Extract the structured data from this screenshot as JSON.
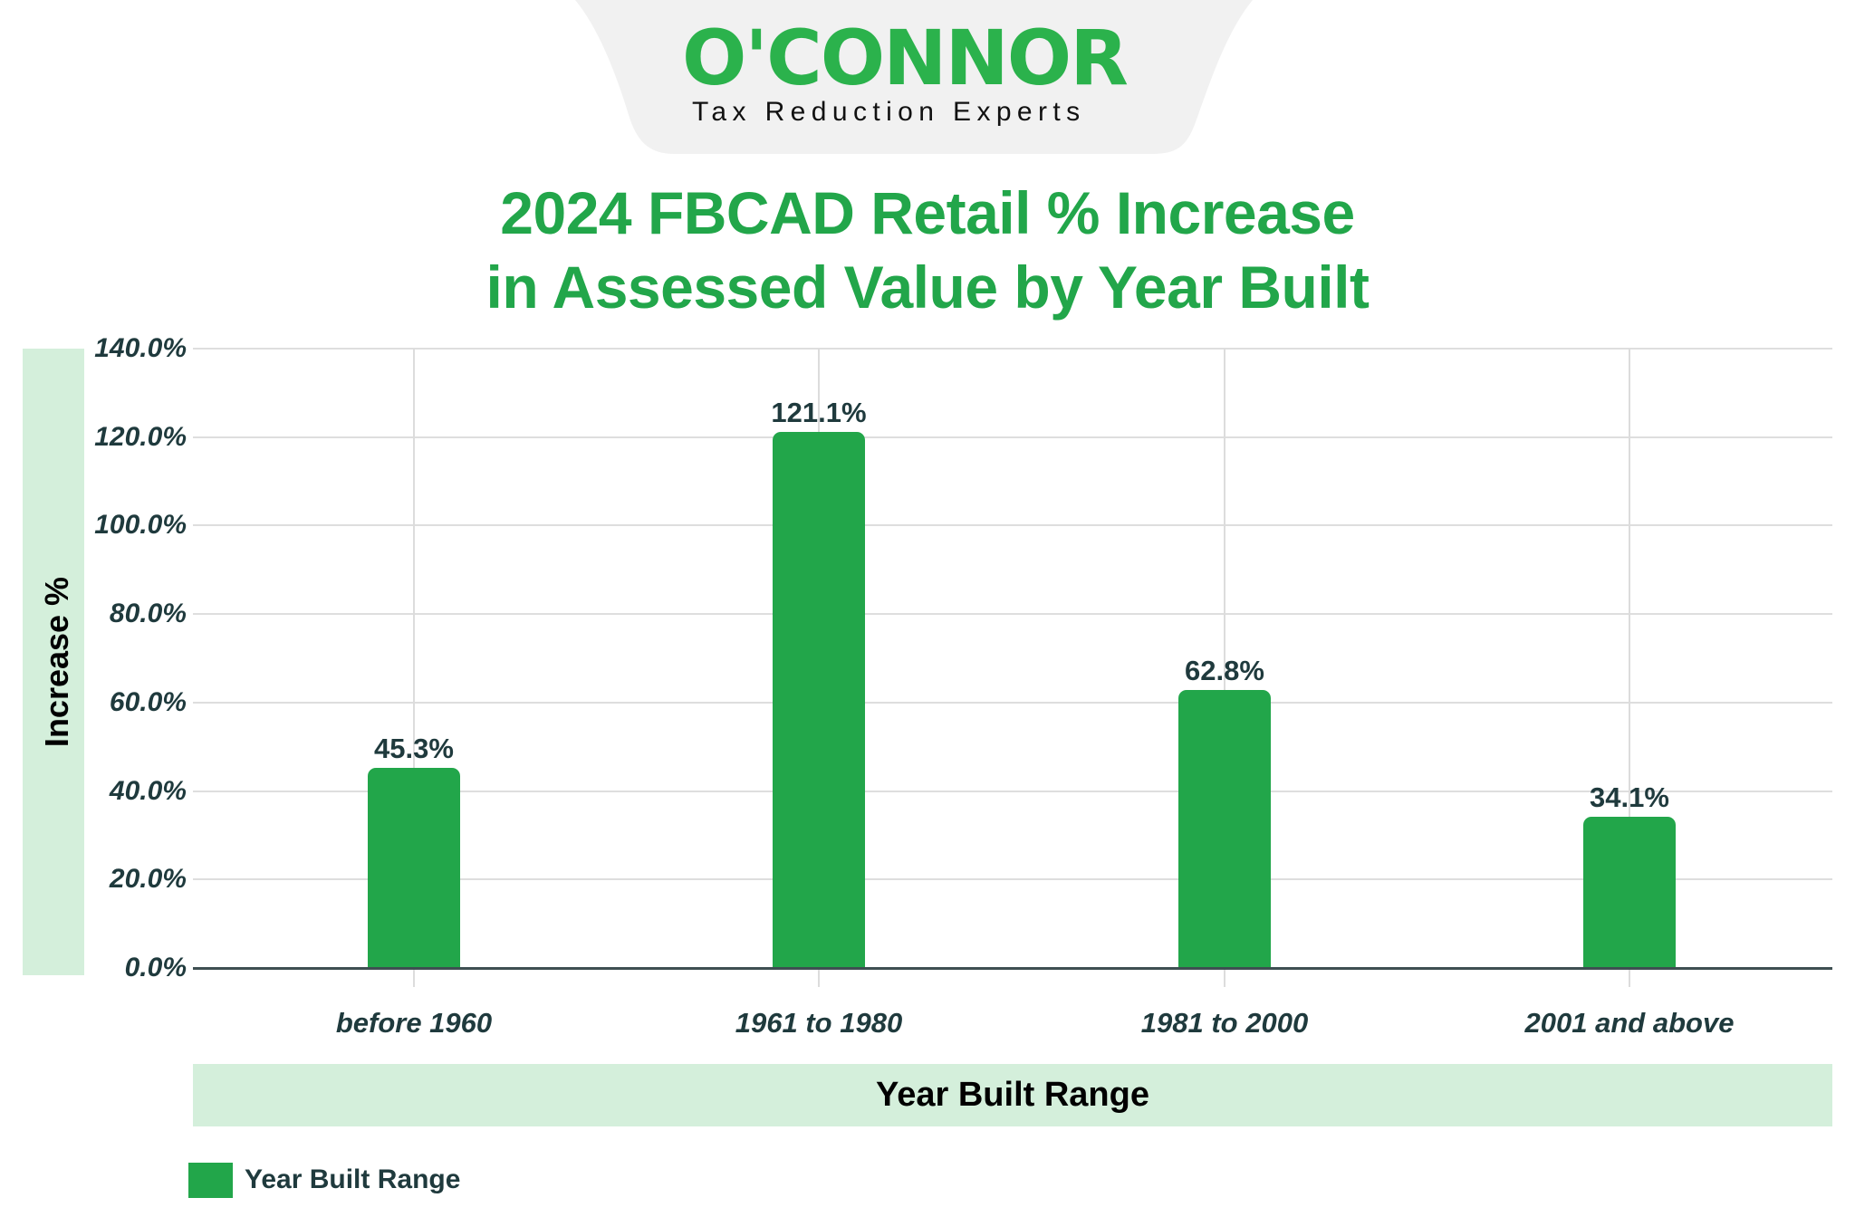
{
  "logo": {
    "brand": "O'CONNOR",
    "tagline": "Tax Reduction Experts",
    "brand_color": "#2bb24c",
    "bubble_color": "#f1f1f1"
  },
  "title": {
    "line1": "2024 FBCAD Retail % Increase",
    "line2": "in Assessed Value by Year Built"
  },
  "axes": {
    "y_title": "Increase %",
    "x_title": "Year Built Range",
    "y_ticks": [
      "0.0%",
      "20.0%",
      "40.0%",
      "60.0%",
      "80.0%",
      "100.0%",
      "120.0%",
      "140.0%"
    ]
  },
  "bars": [
    {
      "category": "before 1960",
      "value": 45.3,
      "label": "45.3%"
    },
    {
      "category": "1961 to 1980",
      "value": 121.1,
      "label": "121.1%"
    },
    {
      "category": "1981 to 2000",
      "value": 62.8,
      "label": "62.8%"
    },
    {
      "category": "2001 and above",
      "value": 34.1,
      "label": "34.1%"
    }
  ],
  "legend": {
    "items": [
      {
        "label": "Year Built Range",
        "color": "#22a64a"
      }
    ]
  },
  "colors": {
    "bar": "#22a64a",
    "title": "#22a64a",
    "axis_band": "#d4efdb",
    "label_text": "#1f3a3d"
  },
  "chart_data": {
    "type": "bar",
    "title": "2024 FBCAD Retail % Increase in Assessed Value by Year Built",
    "categories": [
      "before 1960",
      "1961 to 1980",
      "1981 to 2000",
      "2001 and above"
    ],
    "values": [
      45.3,
      121.1,
      62.8,
      34.1
    ],
    "series": [
      {
        "name": "Year Built Range",
        "values": [
          45.3,
          121.1,
          62.8,
          34.1
        ]
      }
    ],
    "data_labels": [
      "45.3%",
      "121.1%",
      "62.8%",
      "34.1%"
    ],
    "xlabel": "Year Built Range",
    "ylabel": "Increase %",
    "ylim": [
      0,
      140
    ],
    "y_tick_step": 20,
    "y_tick_format": "0.0%",
    "grid": true,
    "legend_position": "bottom-left"
  }
}
